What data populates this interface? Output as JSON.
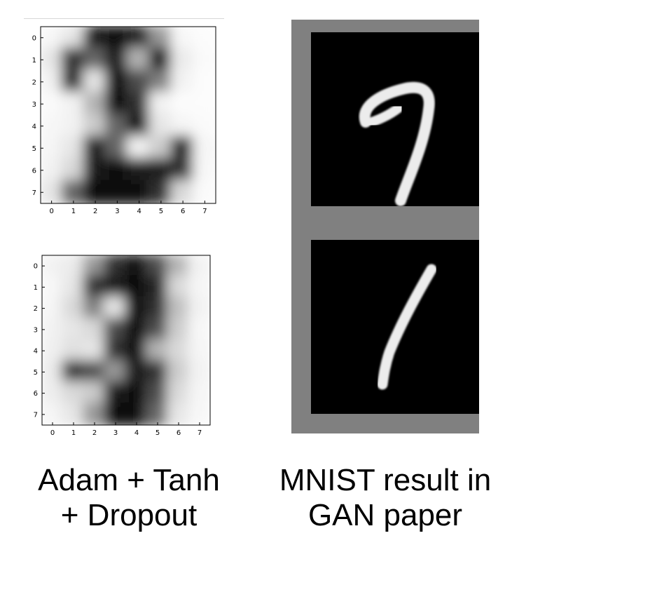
{
  "chart_data": [
    {
      "type": "heatmap",
      "colormap": "gray",
      "x_ticks": [
        "0",
        "1",
        "2",
        "3",
        "4",
        "5",
        "6",
        "7"
      ],
      "y_ticks": [
        "0",
        "1",
        "2",
        "3",
        "4",
        "5",
        "6",
        "7"
      ],
      "values": [
        [
          0.97,
          0.9,
          0.1,
          0.05,
          0.1,
          0.6,
          0.97,
          0.99
        ],
        [
          0.9,
          0.2,
          0.4,
          0.1,
          0.7,
          0.05,
          0.92,
          0.98
        ],
        [
          0.95,
          0.15,
          0.9,
          0.05,
          0.3,
          0.5,
          0.95,
          0.99
        ],
        [
          0.98,
          0.95,
          0.7,
          0.05,
          0.2,
          0.95,
          0.99,
          0.99
        ],
        [
          0.97,
          0.95,
          0.8,
          0.4,
          0.05,
          0.9,
          0.96,
          0.98
        ],
        [
          0.96,
          0.9,
          0.1,
          0.4,
          0.95,
          0.8,
          0.1,
          0.96
        ],
        [
          0.95,
          0.85,
          0.1,
          0.05,
          0.1,
          0.1,
          0.2,
          0.97
        ],
        [
          0.9,
          0.4,
          0.05,
          0.05,
          0.05,
          0.2,
          0.85,
          0.98
        ]
      ]
    },
    {
      "type": "heatmap",
      "colormap": "gray",
      "x_ticks": [
        "0",
        "1",
        "2",
        "3",
        "4",
        "5",
        "6",
        "7"
      ],
      "y_ticks": [
        "0",
        "1",
        "2",
        "3",
        "4",
        "5",
        "6",
        "7"
      ],
      "values": [
        [
          0.95,
          0.92,
          0.6,
          0.2,
          0.05,
          0.3,
          0.7,
          0.95
        ],
        [
          0.97,
          0.9,
          0.2,
          0.1,
          0.05,
          0.15,
          0.85,
          0.96
        ],
        [
          0.96,
          0.85,
          0.5,
          0.9,
          0.05,
          0.2,
          0.75,
          0.95
        ],
        [
          0.95,
          0.9,
          0.85,
          0.3,
          0.05,
          0.3,
          0.8,
          0.97
        ],
        [
          0.94,
          0.88,
          0.9,
          0.2,
          0.05,
          0.7,
          0.85,
          0.96
        ],
        [
          0.92,
          0.2,
          0.3,
          0.6,
          0.1,
          0.2,
          0.8,
          0.95
        ],
        [
          0.93,
          0.85,
          0.8,
          0.1,
          0.05,
          0.3,
          0.85,
          0.96
        ],
        [
          0.96,
          0.9,
          0.6,
          0.05,
          0.05,
          0.4,
          0.9,
          0.97
        ]
      ]
    }
  ],
  "gan_panel": {
    "digits": [
      "7",
      "1"
    ]
  },
  "captions": {
    "left_line1": "Adam + Tanh",
    "left_line2": "+ Dropout",
    "right_line1": "MNIST result in",
    "right_line2": "GAN paper"
  }
}
